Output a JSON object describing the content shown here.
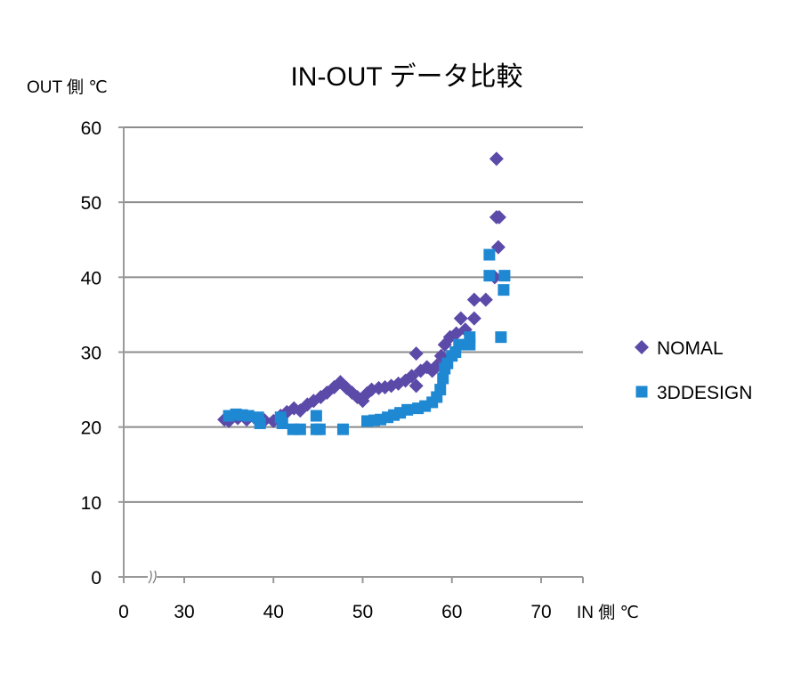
{
  "chart_data": {
    "type": "scatter",
    "title": "IN-OUT データ比較",
    "xlabel": "IN 側 ℃",
    "ylabel": "OUT 側 ℃",
    "x_ticks": [
      "0",
      "30",
      "40",
      "50",
      "60",
      "70"
    ],
    "x_tick_values": [
      0,
      30,
      40,
      50,
      60,
      70
    ],
    "x_axis_break": true,
    "y_ticks": [
      "0",
      "10",
      "20",
      "30",
      "40",
      "50",
      "60"
    ],
    "ylim": [
      0,
      60
    ],
    "grid": "horizontal",
    "legend_position": "right",
    "series": [
      {
        "name": "NOMAL",
        "marker": "diamond",
        "color": "#5B4AA8",
        "points": [
          [
            34.5,
            21.0
          ],
          [
            35.0,
            20.8
          ],
          [
            36.0,
            21.2
          ],
          [
            37.0,
            21.0
          ],
          [
            38.0,
            21.1
          ],
          [
            39.0,
            20.9
          ],
          [
            40.0,
            20.8
          ],
          [
            40.8,
            21.5
          ],
          [
            41.5,
            22.0
          ],
          [
            42.3,
            22.5
          ],
          [
            43.0,
            22.2
          ],
          [
            43.8,
            23.0
          ],
          [
            44.5,
            23.5
          ],
          [
            45.3,
            24.0
          ],
          [
            46.0,
            24.6
          ],
          [
            46.8,
            25.3
          ],
          [
            47.5,
            26.0
          ],
          [
            48.2,
            25.2
          ],
          [
            48.8,
            24.6
          ],
          [
            49.4,
            24.0
          ],
          [
            50.0,
            23.5
          ],
          [
            50.5,
            24.5
          ],
          [
            51.0,
            25.0
          ],
          [
            51.8,
            25.2
          ],
          [
            52.5,
            25.3
          ],
          [
            53.2,
            25.5
          ],
          [
            54.0,
            25.8
          ],
          [
            54.8,
            26.2
          ],
          [
            55.5,
            26.8
          ],
          [
            56.0,
            25.5
          ],
          [
            56.0,
            29.8
          ],
          [
            56.5,
            27.5
          ],
          [
            57.2,
            28.0
          ],
          [
            57.8,
            27.5
          ],
          [
            58.3,
            28.2
          ],
          [
            58.8,
            29.5
          ],
          [
            59.2,
            31.0
          ],
          [
            59.8,
            32.0
          ],
          [
            60.5,
            32.5
          ],
          [
            61.0,
            34.5
          ],
          [
            61.5,
            33.0
          ],
          [
            62.5,
            34.5
          ],
          [
            62.5,
            37.0
          ],
          [
            63.8,
            37.0
          ],
          [
            64.8,
            40.0
          ],
          [
            65.2,
            44.0
          ],
          [
            65.0,
            48.0
          ],
          [
            65.3,
            48.0
          ],
          [
            65.0,
            55.8
          ]
        ]
      },
      {
        "name": "3DDESIGN",
        "marker": "square",
        "color": "#1E88D3",
        "points": [
          [
            35.0,
            21.5
          ],
          [
            35.8,
            21.7
          ],
          [
            36.5,
            21.6
          ],
          [
            37.2,
            21.5
          ],
          [
            38.3,
            21.3
          ],
          [
            38.5,
            20.5
          ],
          [
            40.8,
            21.3
          ],
          [
            41.0,
            20.5
          ],
          [
            42.2,
            19.7
          ],
          [
            43.0,
            19.7
          ],
          [
            44.8,
            21.5
          ],
          [
            44.8,
            19.7
          ],
          [
            45.2,
            19.7
          ],
          [
            47.8,
            19.7
          ],
          [
            50.5,
            20.8
          ],
          [
            51.3,
            20.9
          ],
          [
            52.0,
            21.0
          ],
          [
            52.8,
            21.3
          ],
          [
            53.5,
            21.6
          ],
          [
            54.2,
            21.9
          ],
          [
            55.0,
            22.3
          ],
          [
            56.2,
            22.5
          ],
          [
            57.0,
            22.8
          ],
          [
            57.8,
            23.3
          ],
          [
            58.3,
            24.0
          ],
          [
            58.7,
            25.0
          ],
          [
            59.0,
            26.5
          ],
          [
            59.2,
            27.8
          ],
          [
            59.5,
            28.5
          ],
          [
            60.0,
            29.5
          ],
          [
            60.4,
            30.0
          ],
          [
            60.8,
            31.0
          ],
          [
            62.0,
            31.0
          ],
          [
            62.0,
            32.0
          ],
          [
            64.2,
            43.0
          ],
          [
            64.2,
            40.2
          ],
          [
            65.5,
            32.0
          ],
          [
            65.8,
            38.3
          ],
          [
            65.9,
            40.2
          ]
        ]
      }
    ]
  },
  "colors": {
    "axis": "#999999",
    "gridline": "#8C8C8C",
    "background": "#FFFFFF"
  }
}
